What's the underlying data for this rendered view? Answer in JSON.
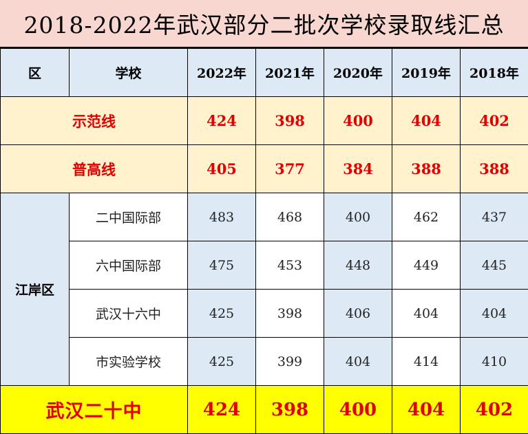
{
  "title": "2018-2022年武汉部分二批次学校录取线汇总",
  "colors": {
    "title_bg": "#f7d7cf",
    "header_bg": "#ddeaf6",
    "line_bg": "#fff2cc",
    "highlight_bg": "#ffff00",
    "red_text": "#e00000"
  },
  "header": {
    "district": "区",
    "school": "学校",
    "years": [
      "2022年",
      "2021年",
      "2020年",
      "2019年",
      "2018年"
    ]
  },
  "lines": [
    {
      "label": "示范线",
      "values": [
        "424",
        "398",
        "400",
        "404",
        "402"
      ]
    },
    {
      "label": "普高线",
      "values": [
        "405",
        "377",
        "384",
        "388",
        "388"
      ]
    }
  ],
  "district": "江岸区",
  "schools": [
    {
      "name": "二中国际部",
      "values": [
        "483",
        "468",
        "400",
        "462",
        "437"
      ]
    },
    {
      "name": "六中国际部",
      "values": [
        "475",
        "453",
        "448",
        "449",
        "445"
      ]
    },
    {
      "name": "武汉十六中",
      "values": [
        "425",
        "398",
        "406",
        "404",
        "404"
      ]
    },
    {
      "name": "市实验学校",
      "values": [
        "425",
        "399",
        "404",
        "414",
        "410"
      ]
    }
  ],
  "highlight": {
    "name": "武汉二十中",
    "values": [
      "424",
      "398",
      "400",
      "404",
      "402"
    ]
  }
}
